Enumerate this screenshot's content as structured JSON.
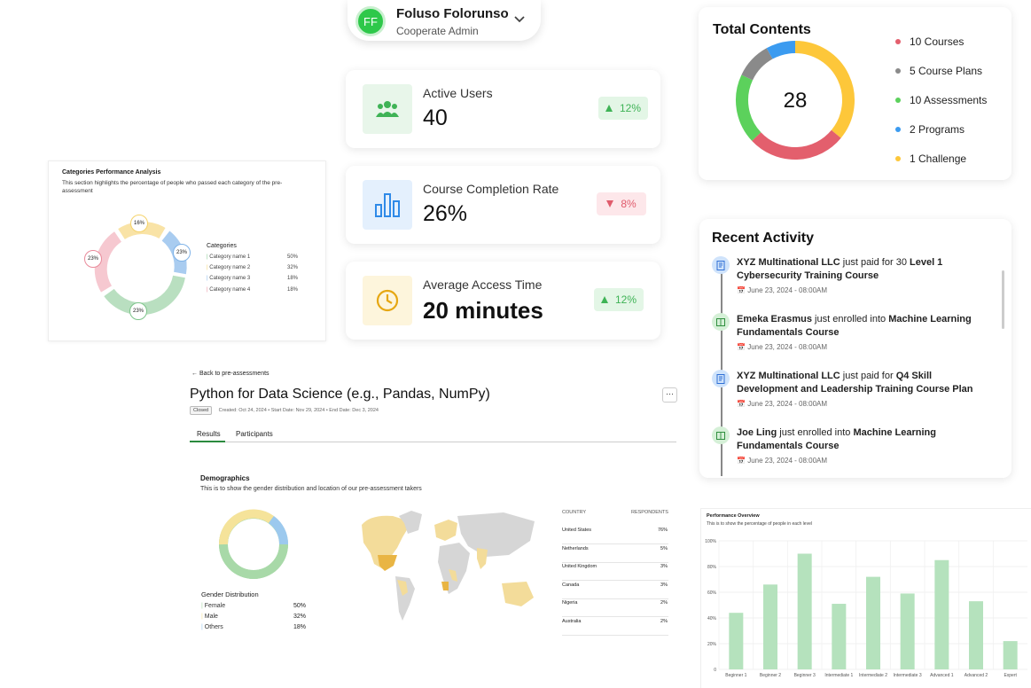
{
  "user": {
    "initials": "FF",
    "name": "Foluso Folorunso",
    "role": "Cooperate Admin"
  },
  "stats": [
    {
      "label": "Active Users",
      "value": "40",
      "change": "12%",
      "trend": "up"
    },
    {
      "label": "Course Completion Rate",
      "value": "26%",
      "change": "8%",
      "trend": "down"
    },
    {
      "label": "Average Access Time",
      "value": "20 minutes",
      "change": "12%",
      "trend": "up"
    }
  ],
  "total_contents": {
    "title": "Total Contents",
    "center": "28",
    "legend": [
      {
        "label": "10 Courses",
        "color": "#e35f6d",
        "count": 10
      },
      {
        "label": "5 Course Plans",
        "color": "#8a8a8a",
        "count": 5
      },
      {
        "label": "10 Assessments",
        "color": "#5cd15c",
        "count": 10
      },
      {
        "label": "2 Programs",
        "color": "#3b9bf0",
        "count": 2
      },
      {
        "label": "1 Challenge",
        "color": "#fdc73a",
        "count": 1
      }
    ]
  },
  "recent_activity": {
    "title": "Recent Activity",
    "items": [
      {
        "actor": "XYZ Multinational LLC",
        "action": " just paid for 30 ",
        "object": "Level 1 Cybersecurity Training Course",
        "date": "June 23, 2024 - 08:00AM",
        "type": "payment"
      },
      {
        "actor": "Emeka Erasmus",
        "action": " just enrolled into ",
        "object": "Machine Learning Fundamentals Course",
        "date": "June 23, 2024 - 08:00AM",
        "type": "enroll"
      },
      {
        "actor": "XYZ Multinational LLC",
        "action": " just paid for ",
        "object": "Q4 Skill Development and Leadership Training Course Plan",
        "date": "June 23, 2024 - 08:00AM",
        "type": "payment"
      },
      {
        "actor": "Joe Ling",
        "action": " just enrolled into ",
        "object": "Machine Learning Fundamentals Course",
        "date": "June 23, 2024 - 08:00AM",
        "type": "enroll"
      }
    ]
  },
  "categories": {
    "title": "Categories Performance Analysis",
    "description": "This section highlights the percentage of people who passed each category of the pre-assessment",
    "legend_title": "Categories",
    "ring_labels": [
      "16%",
      "23%",
      "23%",
      "23%"
    ],
    "items": [
      {
        "label": "Category name 1",
        "value": "50%",
        "color": "#7dc48a"
      },
      {
        "label": "Category name 2",
        "value": "32%",
        "color": "#f5d36b"
      },
      {
        "label": "Category name 3",
        "value": "18%",
        "color": "#7fb3e8"
      },
      {
        "label": "Category name 4",
        "value": "18%",
        "color": "#e98a9a"
      }
    ]
  },
  "assessment": {
    "back": "Back to pre-assessments",
    "title": "Python for Data Science (e.g., Pandas, NumPy)",
    "status": "Closed",
    "created": "Created: Oct 24, 2024",
    "start": "Start Date: Nov 29, 2024",
    "end": "End Date: Dec 3, 2024",
    "tabs": [
      "Results",
      "Participants"
    ],
    "demographics_title": "Demographics",
    "demographics_desc": "This is to show the gender distribution and location of our pre-assessment takers",
    "gender_title": "Gender Distribution",
    "gender": [
      {
        "label": "Female",
        "value": "50%",
        "color": "#a8d9a8"
      },
      {
        "label": "Male",
        "value": "32%",
        "color": "#f5e39a"
      },
      {
        "label": "Others",
        "value": "18%",
        "color": "#9cc9ee"
      }
    ],
    "country_header": "COUNTRY",
    "respondents_header": "RESPONDENTS",
    "countries": [
      {
        "name": "United States",
        "value": "76%"
      },
      {
        "name": "Netherlands",
        "value": "5%"
      },
      {
        "name": "United Kingdom",
        "value": "3%"
      },
      {
        "name": "Canada",
        "value": "3%"
      },
      {
        "name": "Nigeria",
        "value": "2%"
      },
      {
        "name": "Australia",
        "value": "2%"
      }
    ]
  },
  "chart_data": {
    "type": "bar",
    "title": "Performance Overview",
    "subtitle": "This is to show the percentage of people in each level",
    "categories": [
      "Beginner 1",
      "Beginner 2",
      "Beginner 3",
      "Intermediate 1",
      "Intermediate 2",
      "Intermediate 3",
      "Advanced 1",
      "Advanced 2",
      "Expert"
    ],
    "values": [
      44,
      66,
      90,
      51,
      72,
      59,
      85,
      53,
      22
    ],
    "yticks": [
      "0",
      "20%",
      "40%",
      "60%",
      "80%",
      "100%"
    ],
    "ylim": [
      0,
      100
    ],
    "grid": true,
    "color": "#b5e2bd"
  }
}
